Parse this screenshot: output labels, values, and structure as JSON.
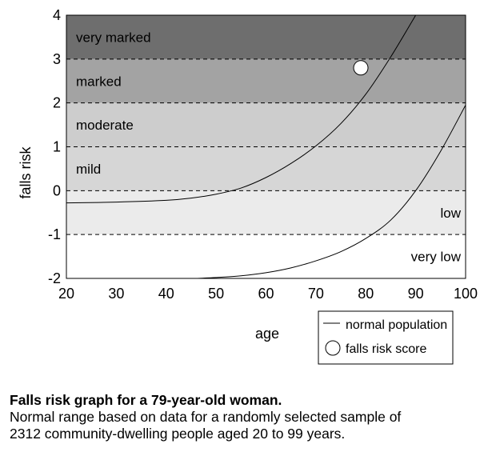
{
  "chart_data": {
    "type": "line",
    "xlabel": "age",
    "ylabel": "falls risk",
    "xlim": [
      20,
      100
    ],
    "ylim": [
      -2,
      4
    ],
    "x_ticks": [
      20,
      30,
      40,
      50,
      60,
      70,
      80,
      90,
      100
    ],
    "y_ticks": [
      -2,
      -1,
      0,
      1,
      2,
      3,
      4
    ],
    "grid": "dashed horizontal lines at -1, 0, 1, 2, 3",
    "bands": [
      {
        "label": "very marked",
        "from": 3,
        "to": 4,
        "color": "#6e6e6e"
      },
      {
        "label": "marked",
        "from": 2,
        "to": 3,
        "color": "#a3a3a3"
      },
      {
        "label": "moderate",
        "from": 1,
        "to": 2,
        "color": "#cdcdcd"
      },
      {
        "label": "mild",
        "from": 0,
        "to": 1,
        "color": "#d6d6d6"
      },
      {
        "label": "low",
        "from": -1,
        "to": 0,
        "color": "#ebebeb"
      },
      {
        "label": "very low",
        "from": -2,
        "to": -1,
        "color": "#ffffff"
      }
    ],
    "series": [
      {
        "name": "normal population",
        "kind": "line",
        "x": [
          20,
          30,
          40,
          45,
          50,
          55,
          60,
          65,
          70,
          75,
          80,
          85,
          90,
          95
        ],
        "y": [
          -0.28,
          -0.26,
          -0.22,
          -0.17,
          -0.08,
          0.06,
          0.3,
          0.62,
          1.02,
          1.53,
          2.2,
          3.05,
          4.0,
          4.0
        ],
        "y_clip_max": 4
      },
      {
        "kind": "line",
        "x": [
          46,
          50,
          55,
          60,
          65,
          70,
          75,
          80,
          85,
          90,
          95,
          100
        ],
        "y": [
          -2.0,
          -1.98,
          -1.94,
          -1.87,
          -1.76,
          -1.6,
          -1.39,
          -1.09,
          -0.67,
          0.0,
          0.9,
          1.95
        ]
      },
      {
        "name": "falls risk score",
        "kind": "point",
        "x": 79,
        "y": 2.8
      }
    ],
    "legend": {
      "placement": "bottom-right",
      "line_label": "normal population",
      "marker_label": "falls risk score"
    }
  },
  "caption": {
    "title": "Falls risk graph for a 79-year-old woman.",
    "line1": "Normal range based on data for a randomly selected sample of",
    "line2": "2312 community-dwelling people aged 20 to 99 years."
  }
}
